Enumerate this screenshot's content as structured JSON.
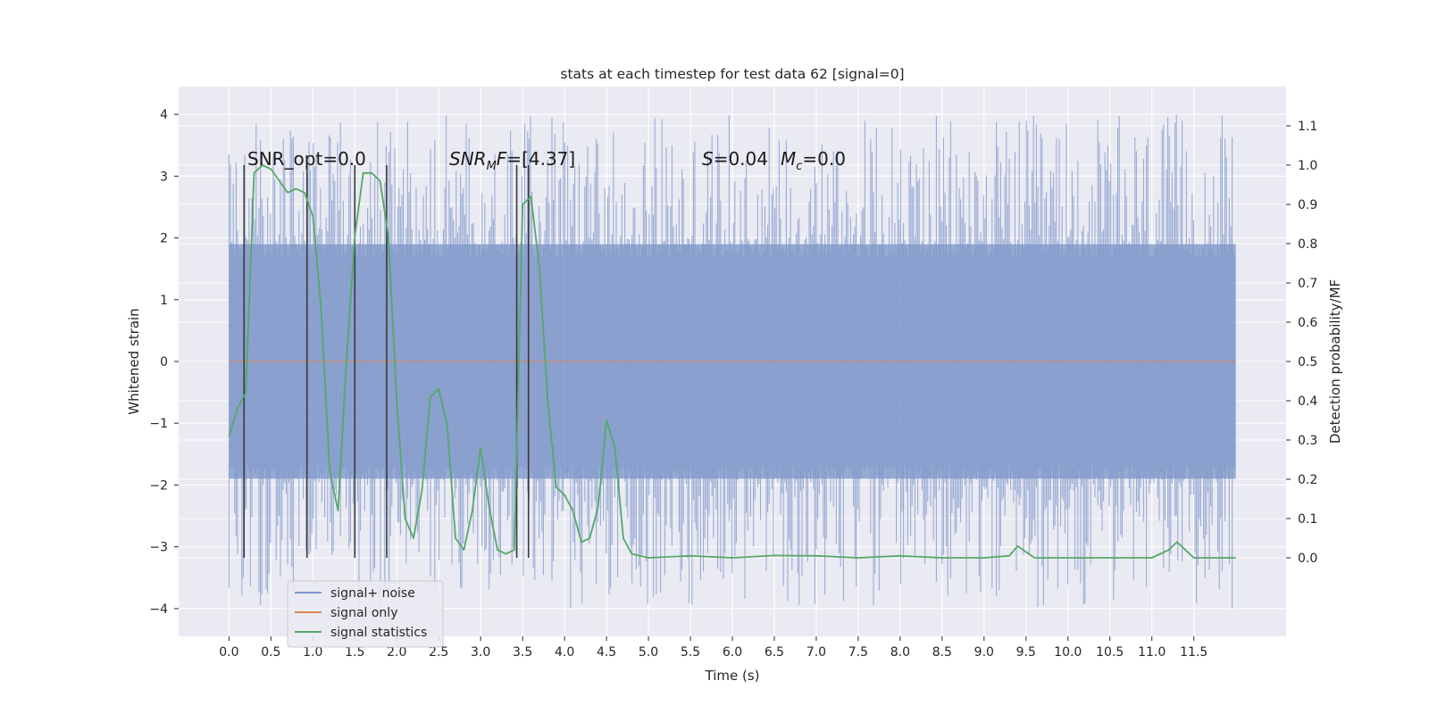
{
  "chart_data": {
    "type": "line",
    "title": "stats at each timestep for test data 62 [signal=0]",
    "xlabel": "Time (s)",
    "ylabel_left": "Whitened strain",
    "ylabel_right": "Detection probability/MF",
    "xlim": [
      -0.6,
      12.6
    ],
    "ylim_left": [
      -4.45,
      4.45
    ],
    "ylim_right": [
      -0.2,
      1.2
    ],
    "x_ticks": [
      "0.0",
      "0.5",
      "1.0",
      "1.5",
      "2.0",
      "2.5",
      "3.0",
      "3.5",
      "4.0",
      "4.5",
      "5.0",
      "5.5",
      "6.0",
      "6.5",
      "7.0",
      "7.5",
      "8.0",
      "8.5",
      "9.0",
      "9.5",
      "10.0",
      "10.5",
      "11.0",
      "11.5"
    ],
    "y_ticks_left": [
      "4",
      "3",
      "2",
      "1",
      "0",
      "−1",
      "−2",
      "−3",
      "−4"
    ],
    "y_ticks_right": [
      "1.1",
      "1.0",
      "0.9",
      "0.8",
      "0.7",
      "0.6",
      "0.5",
      "0.4",
      "0.3",
      "0.2",
      "0.1",
      "0.0"
    ],
    "grid": true,
    "legend_position": "bottom-left",
    "annotations": {
      "snr_opt": "SNR_opt=0.0",
      "snr_mf": "=[4.37]",
      "snr_mf_main": "SNR",
      "snr_mf_sub": "M",
      "snr_mf_tail": "F",
      "stat_s": "S",
      "stat_s_val": "=0.04",
      "stat_mc": "M",
      "stat_mc_sub": "c",
      "stat_mc_val": "=0.0"
    },
    "series": [
      {
        "name": "signal+ noise",
        "color": "#7f97c9",
        "axis": "left",
        "style": "dense-noise",
        "x_range": [
          0.0,
          12.0
        ],
        "body_range": [
          -1.9,
          1.9
        ],
        "peak_range": [
          -4.0,
          4.0
        ]
      },
      {
        "name": "signal only",
        "color": "#dd8452",
        "axis": "left",
        "x": [
          0.0,
          12.0
        ],
        "y": [
          0.0,
          0.0
        ]
      },
      {
        "name": "signal statistics",
        "color": "#55a868",
        "axis": "right",
        "x": [
          0.0,
          0.1,
          0.2,
          0.3,
          0.4,
          0.5,
          0.6,
          0.7,
          0.8,
          0.9,
          1.0,
          1.1,
          1.2,
          1.3,
          1.4,
          1.5,
          1.6,
          1.7,
          1.8,
          1.9,
          2.0,
          2.1,
          2.2,
          2.3,
          2.4,
          2.5,
          2.6,
          2.7,
          2.8,
          2.9,
          3.0,
          3.1,
          3.2,
          3.3,
          3.4,
          3.5,
          3.6,
          3.7,
          3.8,
          3.9,
          4.0,
          4.1,
          4.2,
          4.3,
          4.4,
          4.5,
          4.6,
          4.7,
          4.8,
          5.0,
          5.5,
          6.0,
          6.5,
          7.0,
          7.5,
          8.0,
          8.5,
          9.0,
          9.3,
          9.4,
          9.5,
          9.6,
          9.7,
          10.0,
          10.5,
          11.0,
          11.2,
          11.3,
          11.4,
          11.5,
          12.0
        ],
        "y": [
          0.31,
          0.38,
          0.42,
          0.98,
          1.0,
          0.99,
          0.96,
          0.93,
          0.94,
          0.93,
          0.87,
          0.63,
          0.22,
          0.12,
          0.5,
          0.82,
          0.98,
          0.98,
          0.96,
          0.82,
          0.4,
          0.1,
          0.05,
          0.17,
          0.41,
          0.43,
          0.34,
          0.05,
          0.02,
          0.12,
          0.28,
          0.13,
          0.02,
          0.01,
          0.02,
          0.9,
          0.92,
          0.74,
          0.4,
          0.18,
          0.16,
          0.12,
          0.04,
          0.05,
          0.13,
          0.35,
          0.28,
          0.05,
          0.01,
          0.0,
          0.005,
          0.0,
          0.006,
          0.005,
          0.0,
          0.005,
          0.0,
          0.0,
          0.005,
          0.03,
          0.015,
          0.0,
          0.0,
          0.0,
          0.0,
          0.0,
          0.02,
          0.04,
          0.02,
          0.0,
          0.0
        ]
      }
    ],
    "vertical_markers": {
      "color": "#3a3a3a",
      "axis": "right",
      "y_top": 1.0,
      "y_bottom": 0.0,
      "x": [
        0.18,
        0.93,
        1.5,
        1.88,
        3.43,
        3.57
      ]
    }
  }
}
